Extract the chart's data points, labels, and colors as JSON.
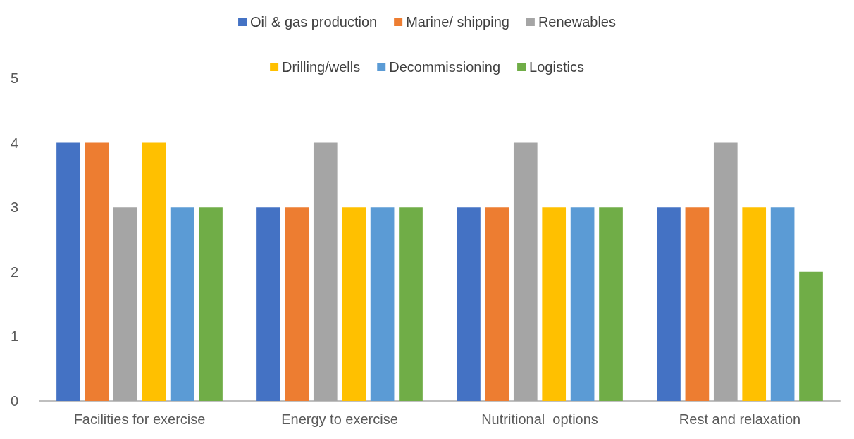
{
  "chart_data": {
    "type": "bar",
    "categories": [
      "Facilities for exercise",
      "Energy to exercise",
      "Nutritional  options",
      "Rest and relaxation"
    ],
    "series": [
      {
        "name": "Oil & gas production",
        "color": "#4472c4",
        "values": [
          4,
          3,
          3,
          3
        ]
      },
      {
        "name": "Marine/ shipping",
        "color": "#ed7d31",
        "values": [
          4,
          3,
          3,
          3
        ]
      },
      {
        "name": "Renewables",
        "color": "#a5a5a5",
        "values": [
          3,
          4,
          4,
          4
        ]
      },
      {
        "name": "Drilling/wells",
        "color": "#ffc000",
        "values": [
          4,
          3,
          3,
          3
        ]
      },
      {
        "name": "Decommissioning",
        "color": "#5b9bd5",
        "values": [
          3,
          3,
          3,
          3
        ]
      },
      {
        "name": "Logistics",
        "color": "#70ad47",
        "values": [
          3,
          3,
          3,
          2
        ]
      }
    ],
    "ylim": [
      0,
      5
    ],
    "yticks": [
      0,
      1,
      2,
      3,
      4,
      5
    ],
    "grid": false,
    "legend": "top"
  }
}
